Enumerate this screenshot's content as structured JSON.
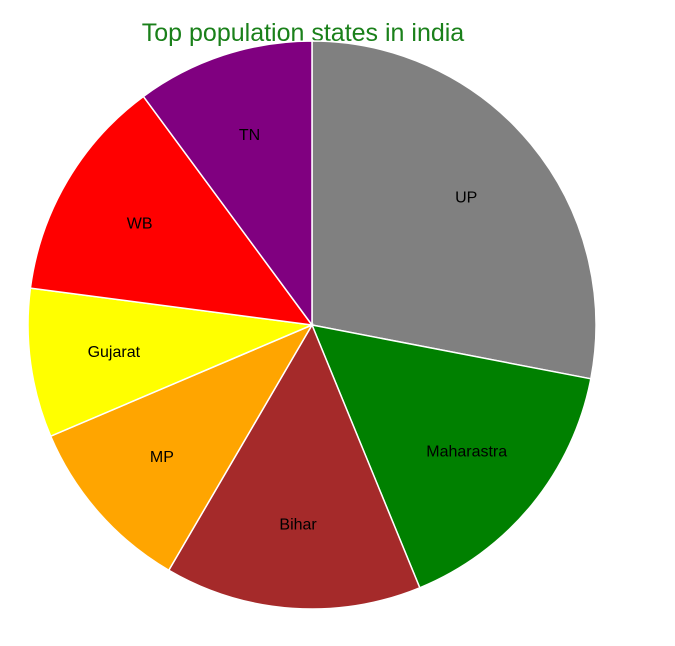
{
  "chart_data": {
    "type": "pie",
    "title": "Top population states in india",
    "categories": [
      "UP",
      "Maharastra",
      "Bihar",
      "MP",
      "Gujarat",
      "WB",
      "TN"
    ],
    "values": [
      199.8,
      112.4,
      104.1,
      72.6,
      60.4,
      91.3,
      72.1
    ],
    "colors": [
      "#808080",
      "#008000",
      "#a52a2a",
      "#ffa500",
      "#ffff00",
      "#ff0000",
      "#800080"
    ],
    "start_angle_deg": 0,
    "direction": "clockwise"
  }
}
